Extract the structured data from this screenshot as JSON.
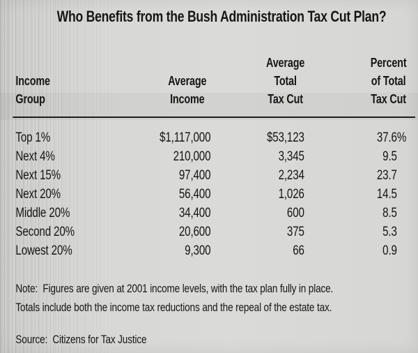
{
  "title": "Who Benefits from the Bush Administration Tax Cut Plan?",
  "table": {
    "columns": [
      {
        "id": "income-group",
        "lines": [
          "Income",
          "Group"
        ]
      },
      {
        "id": "average-income",
        "lines": [
          "Average",
          "Income"
        ]
      },
      {
        "id": "average-total-tax-cut",
        "lines": [
          "Average",
          "Total",
          "Tax Cut"
        ]
      },
      {
        "id": "percent-of-total-tax-cut",
        "lines": [
          "Percent",
          "of Total",
          "Tax Cut"
        ]
      }
    ],
    "rows": [
      {
        "group": "Top 1%",
        "avg_income": "$1,117,000",
        "avg_total_tax_cut": "$53,123",
        "pct_total_tax_cut": "37.6%"
      },
      {
        "group": "Next 4%",
        "avg_income": "210,000",
        "avg_total_tax_cut": "3,345",
        "pct_total_tax_cut": "9.5"
      },
      {
        "group": "Next 15%",
        "avg_income": "97,400",
        "avg_total_tax_cut": "2,234",
        "pct_total_tax_cut": "23.7"
      },
      {
        "group": "Next 20%",
        "avg_income": "56,400",
        "avg_total_tax_cut": "1,026",
        "pct_total_tax_cut": "14.5"
      },
      {
        "group": "Middle 20%",
        "avg_income": "34,400",
        "avg_total_tax_cut": "600",
        "pct_total_tax_cut": "8.5"
      },
      {
        "group": "Second 20%",
        "avg_income": "20,600",
        "avg_total_tax_cut": "375",
        "pct_total_tax_cut": "5.3"
      },
      {
        "group": "Lowest 20%",
        "avg_income": "9,300",
        "avg_total_tax_cut": "66",
        "pct_total_tax_cut": "0.9"
      }
    ]
  },
  "note": {
    "line1": "Note:  Figures are given at 2001 income levels, with the tax plan fully in place.",
    "line2": "Totals include both the income tax reductions and the repeal of the estate tax."
  },
  "source": "Source:  Citizens for Tax Justice",
  "colors": {
    "background": "#d8d8d6",
    "text": "#161616",
    "rule": "#1c1c1c"
  },
  "chart_data": {
    "type": "table",
    "title": "Who Benefits from the Bush Administration Tax Cut Plan?",
    "columns": [
      "Income Group",
      "Average Income",
      "Average Total Tax Cut",
      "Percent of Total Tax Cut"
    ],
    "rows": [
      [
        "Top 1%",
        1117000,
        53123,
        37.6
      ],
      [
        "Next 4%",
        210000,
        3345,
        9.5
      ],
      [
        "Next 15%",
        97400,
        2234,
        23.7
      ],
      [
        "Next 20%",
        56400,
        1026,
        14.5
      ],
      [
        "Middle 20%",
        34400,
        600,
        8.5
      ],
      [
        "Second 20%",
        20600,
        375,
        5.3
      ],
      [
        "Lowest 20%",
        9300,
        66,
        0.9
      ]
    ],
    "units": {
      "Average Income": "USD",
      "Average Total Tax Cut": "USD",
      "Percent of Total Tax Cut": "%"
    },
    "note": "Figures are given at 2001 income levels, with the tax plan fully in place. Totals include both the income tax reductions and the repeal of the estate tax.",
    "source": "Citizens for Tax Justice"
  }
}
